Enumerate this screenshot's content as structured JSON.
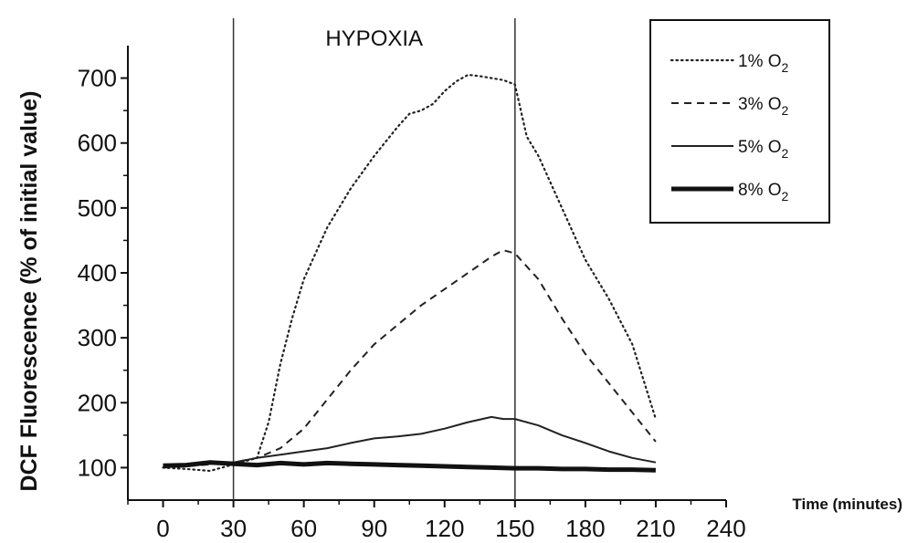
{
  "chart_data": {
    "type": "line",
    "title": "",
    "xlabel": "Time (minutes)",
    "ylabel": "DCF Fluorescence (% of initial value)",
    "xlim": [
      -15,
      240
    ],
    "ylim": [
      50,
      750
    ],
    "xticks": [
      0,
      30,
      60,
      90,
      120,
      150,
      180,
      210,
      240
    ],
    "yticks": [
      100,
      200,
      300,
      400,
      500,
      600,
      700
    ],
    "grid": false,
    "legend_position": "top-right",
    "annotations": [
      {
        "text": "HYPOXIA",
        "from": 30,
        "to": 150
      }
    ],
    "vlines": [
      30,
      150
    ],
    "series": [
      {
        "name": "1% O2",
        "label_main": "1% O",
        "label_sub": "2",
        "style": "dotted",
        "color": "#222222",
        "x": [
          0,
          10,
          20,
          30,
          40,
          45,
          50,
          55,
          60,
          70,
          80,
          90,
          100,
          105,
          110,
          115,
          120,
          125,
          130,
          135,
          140,
          145,
          150,
          155,
          160,
          170,
          180,
          190,
          200,
          210
        ],
        "y": [
          100,
          98,
          95,
          105,
          115,
          170,
          260,
          330,
          390,
          470,
          530,
          580,
          625,
          645,
          650,
          660,
          680,
          695,
          705,
          703,
          700,
          697,
          690,
          610,
          580,
          500,
          420,
          360,
          290,
          175
        ]
      },
      {
        "name": "3% O2",
        "label_main": "3% O",
        "label_sub": "2",
        "style": "dashed",
        "color": "#222222",
        "x": [
          0,
          10,
          20,
          30,
          40,
          50,
          60,
          70,
          80,
          90,
          100,
          110,
          120,
          130,
          140,
          145,
          150,
          160,
          170,
          180,
          190,
          200,
          210
        ],
        "y": [
          100,
          102,
          105,
          108,
          115,
          130,
          160,
          205,
          250,
          290,
          320,
          350,
          375,
          400,
          425,
          435,
          430,
          390,
          330,
          275,
          230,
          185,
          140
        ]
      },
      {
        "name": "5% O2",
        "label_main": "5% O",
        "label_sub": "2",
        "style": "solid-thin",
        "color": "#222222",
        "x": [
          0,
          10,
          20,
          30,
          40,
          50,
          60,
          70,
          80,
          90,
          100,
          110,
          120,
          130,
          140,
          145,
          150,
          160,
          170,
          180,
          190,
          200,
          210
        ],
        "y": [
          102,
          104,
          106,
          108,
          115,
          120,
          125,
          130,
          138,
          145,
          148,
          152,
          160,
          170,
          178,
          175,
          175,
          165,
          150,
          138,
          125,
          115,
          108
        ]
      },
      {
        "name": "8% O2",
        "label_main": "8% O",
        "label_sub": "2",
        "style": "solid-thick",
        "color": "#111111",
        "x": [
          0,
          10,
          20,
          30,
          40,
          50,
          60,
          70,
          80,
          90,
          100,
          110,
          120,
          130,
          140,
          150,
          160,
          170,
          180,
          190,
          200,
          210
        ],
        "y": [
          103,
          104,
          108,
          106,
          104,
          107,
          105,
          107,
          106,
          105,
          104,
          103,
          102,
          101,
          100,
          99,
          99,
          98,
          98,
          97,
          97,
          96
        ]
      }
    ]
  }
}
